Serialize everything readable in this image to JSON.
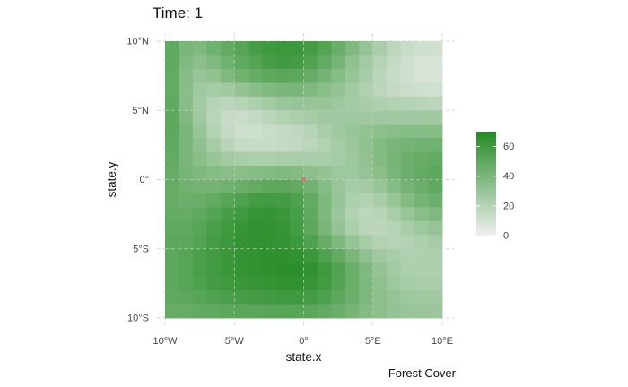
{
  "chart_data": {
    "type": "heatmap",
    "title": "Time: 1",
    "xlabel": "state.x",
    "ylabel": "state.y",
    "caption": "Forest Cover",
    "xlim": [
      -10,
      10
    ],
    "ylim": [
      -10,
      10
    ],
    "x_ticks": [
      "10°W",
      "5°W",
      "0°",
      "5°E",
      "10°E"
    ],
    "y_ticks": [
      "10°N",
      "5°N",
      "0°",
      "5°S",
      "10°S"
    ],
    "grid": true,
    "legend": {
      "position": "right",
      "ticks": [
        "60",
        "40",
        "20",
        "0"
      ],
      "range": [
        0,
        70
      ],
      "low_color": "#f0f0f0",
      "high_color": "#228b22"
    },
    "cell_size": 1,
    "rows_north_to_south": [
      [
        49,
        40,
        38,
        44,
        48,
        52,
        57,
        60,
        61,
        61,
        58,
        53,
        46,
        38,
        31,
        24,
        18,
        14,
        12,
        11
      ],
      [
        49,
        38,
        34,
        38,
        44,
        49,
        53,
        57,
        59,
        58,
        54,
        48,
        41,
        33,
        26,
        20,
        15,
        11,
        9,
        8
      ],
      [
        48,
        36,
        30,
        32,
        38,
        43,
        47,
        50,
        51,
        50,
        47,
        42,
        36,
        30,
        24,
        18,
        14,
        11,
        9,
        8
      ],
      [
        48,
        35,
        27,
        25,
        27,
        31,
        35,
        38,
        40,
        40,
        38,
        35,
        31,
        26,
        22,
        18,
        15,
        13,
        12,
        11
      ],
      [
        49,
        36,
        26,
        20,
        18,
        20,
        23,
        26,
        29,
        30,
        30,
        30,
        28,
        26,
        24,
        22,
        21,
        20,
        19,
        18
      ],
      [
        50,
        38,
        27,
        19,
        14,
        13,
        15,
        18,
        21,
        23,
        25,
        27,
        27,
        27,
        27,
        27,
        27,
        27,
        27,
        27
      ],
      [
        50,
        40,
        30,
        21,
        15,
        12,
        12,
        13,
        15,
        17,
        20,
        24,
        27,
        30,
        32,
        34,
        35,
        36,
        36,
        36
      ],
      [
        49,
        40,
        33,
        25,
        19,
        15,
        14,
        14,
        15,
        16,
        18,
        21,
        25,
        29,
        33,
        37,
        40,
        42,
        43,
        44
      ],
      [
        48,
        40,
        35,
        30,
        26,
        24,
        23,
        23,
        24,
        24,
        24,
        24,
        25,
        28,
        32,
        37,
        41,
        45,
        47,
        48
      ],
      [
        47,
        41,
        38,
        36,
        35,
        35,
        36,
        37,
        38,
        37,
        34,
        31,
        28,
        28,
        31,
        35,
        40,
        45,
        48,
        50
      ],
      [
        47,
        43,
        42,
        42,
        44,
        46,
        48,
        50,
        50,
        48,
        43,
        36,
        29,
        25,
        26,
        30,
        36,
        42,
        46,
        49
      ],
      [
        47,
        45,
        46,
        48,
        52,
        55,
        58,
        59,
        58,
        55,
        48,
        39,
        30,
        23,
        21,
        24,
        30,
        37,
        42,
        45
      ],
      [
        48,
        47,
        49,
        53,
        57,
        60,
        63,
        64,
        62,
        57,
        49,
        39,
        29,
        21,
        18,
        19,
        24,
        30,
        35,
        38
      ],
      [
        49,
        49,
        52,
        56,
        60,
        63,
        65,
        65,
        63,
        58,
        50,
        40,
        31,
        23,
        18,
        18,
        20,
        24,
        28,
        31
      ],
      [
        50,
        50,
        54,
        58,
        61,
        64,
        65,
        65,
        64,
        61,
        55,
        47,
        39,
        31,
        25,
        21,
        20,
        21,
        23,
        25
      ],
      [
        50,
        52,
        56,
        59,
        62,
        64,
        65,
        66,
        66,
        65,
        61,
        55,
        48,
        40,
        33,
        27,
        24,
        22,
        22,
        23
      ],
      [
        50,
        52,
        56,
        59,
        62,
        64,
        65,
        66,
        67,
        67,
        65,
        60,
        54,
        46,
        38,
        31,
        26,
        23,
        22,
        22
      ],
      [
        50,
        52,
        55,
        58,
        60,
        62,
        63,
        64,
        65,
        65,
        63,
        59,
        53,
        46,
        39,
        33,
        28,
        25,
        24,
        24
      ],
      [
        49,
        50,
        52,
        54,
        56,
        57,
        58,
        59,
        60,
        60,
        58,
        55,
        50,
        45,
        39,
        34,
        31,
        28,
        27,
        27
      ],
      [
        47,
        47,
        48,
        49,
        50,
        51,
        51,
        52,
        52,
        52,
        51,
        48,
        45,
        41,
        37,
        34,
        31,
        30,
        29,
        29
      ]
    ],
    "points": [
      {
        "x": 0,
        "y": 0,
        "color": "#d87070"
      }
    ]
  }
}
